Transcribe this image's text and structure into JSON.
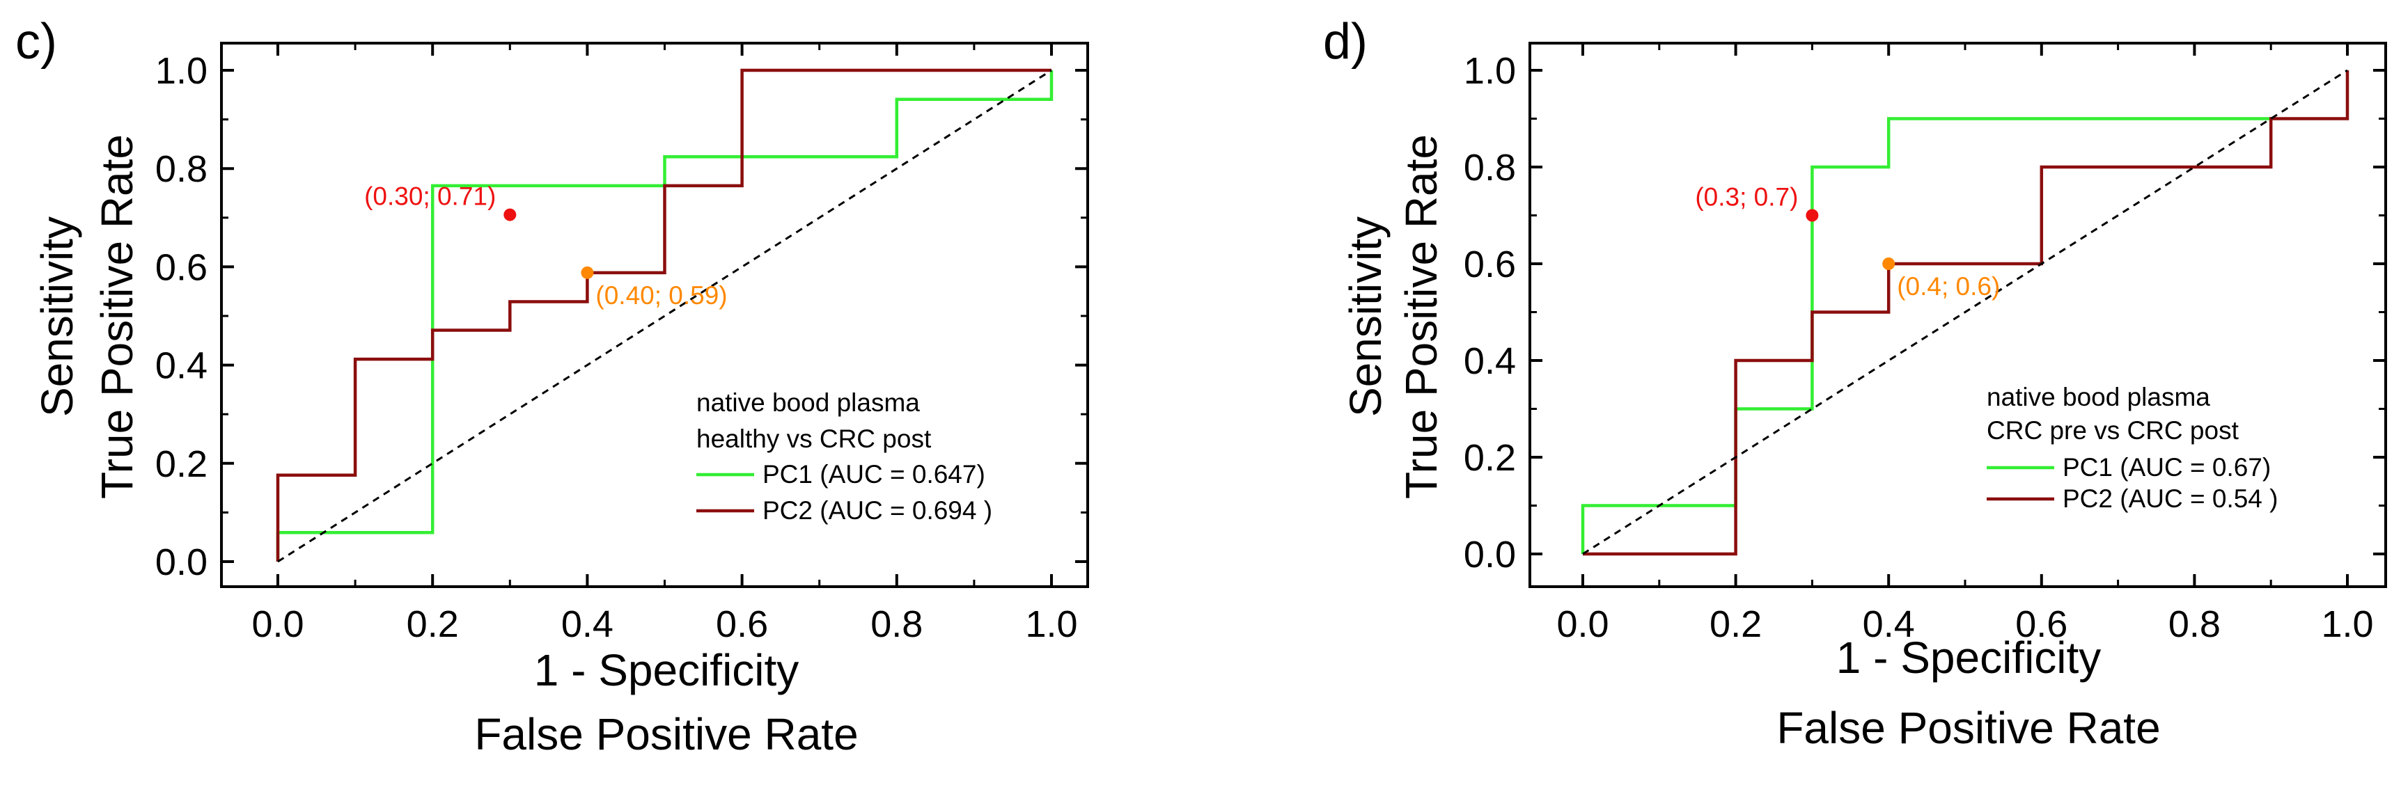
{
  "chart_data": [
    {
      "type": "line",
      "panel_label": "c)",
      "xlabel": [
        "1 - Specificity",
        "False Positive Rate"
      ],
      "ylabel": [
        "Sensitivity",
        "True Positive Rate"
      ],
      "xlim": [
        0.0,
        1.0
      ],
      "ylim": [
        0.0,
        1.0
      ],
      "xticks": [
        "0.0",
        "0.2",
        "0.4",
        "0.6",
        "0.8",
        "1.0"
      ],
      "yticks": [
        "0.0",
        "0.2",
        "0.4",
        "0.6",
        "0.8",
        "1.0"
      ],
      "grid": false,
      "legend_position": "lower-right",
      "legend_title": "native bood plasma",
      "legend_subtitle": "healthy vs CRC post",
      "legend_title_color": "#1f1fd6",
      "series": [
        {
          "name": "PC1 (AUC = 0.647)",
          "color": "#33ee33",
          "x": [
            0.0,
            0.0,
            0.2,
            0.2,
            0.3,
            0.3,
            0.5,
            0.5,
            0.8,
            0.8,
            1.0,
            1.0
          ],
          "y": [
            0.0,
            0.059,
            0.059,
            0.765,
            0.765,
            0.765,
            0.765,
            0.824,
            0.824,
            0.941,
            0.941,
            1.0
          ]
        },
        {
          "name": "PC2 (AUC = 0.694 )",
          "color": "#8b0e0e",
          "x": [
            0.0,
            0.0,
            0.1,
            0.1,
            0.2,
            0.2,
            0.3,
            0.3,
            0.4,
            0.4,
            0.5,
            0.5,
            0.6,
            0.6,
            1.0
          ],
          "y": [
            0.0,
            0.176,
            0.176,
            0.412,
            0.412,
            0.471,
            0.471,
            0.529,
            0.529,
            0.588,
            0.588,
            0.765,
            0.765,
            1.0,
            1.0
          ]
        },
        {
          "name": "",
          "type": "diagonal",
          "color": "#000000",
          "x": [
            0.0,
            1.0
          ],
          "y": [
            0.0,
            1.0
          ]
        }
      ],
      "annotations": [
        {
          "text": "(0.30; 0.71)",
          "x": 0.3,
          "y": 0.706,
          "color": "#ee1111",
          "label_side": "left"
        },
        {
          "text": "(0.40; 0.59)",
          "x": 0.4,
          "y": 0.588,
          "color": "#ff8800",
          "label_side": "below-right"
        }
      ]
    },
    {
      "type": "line",
      "panel_label": "d)",
      "xlabel": [
        "1 - Specificity",
        "False Positive Rate"
      ],
      "ylabel": [
        "Sensitivity",
        "True Positive Rate"
      ],
      "xlim": [
        0.0,
        1.0
      ],
      "ylim": [
        0.0,
        1.0
      ],
      "xticks": [
        "0.0",
        "0.2",
        "0.4",
        "0.6",
        "0.8",
        "1.0"
      ],
      "yticks": [
        "0.0",
        "0.2",
        "0.4",
        "0.6",
        "0.8",
        "1.0"
      ],
      "grid": false,
      "legend_position": "lower-right",
      "legend_title": "native bood plasma",
      "legend_subtitle": "CRC pre vs CRC post",
      "legend_title_color": "#1f1fd6",
      "series": [
        {
          "name": "PC1 (AUC = 0.67)",
          "color": "#33ee33",
          "x": [
            0.0,
            0.0,
            0.2,
            0.2,
            0.3,
            0.3,
            0.4,
            0.4,
            0.9,
            0.9
          ],
          "y": [
            0.0,
            0.1,
            0.1,
            0.3,
            0.3,
            0.8,
            0.8,
            0.9,
            0.9,
            0.9
          ]
        },
        {
          "name": "PC2 (AUC = 0.54 )",
          "color": "#8b0e0e",
          "x": [
            0.0,
            0.2,
            0.2,
            0.3,
            0.3,
            0.4,
            0.4,
            0.6,
            0.6,
            0.9,
            0.9,
            1.0,
            1.0
          ],
          "y": [
            0.0,
            0.0,
            0.4,
            0.4,
            0.5,
            0.5,
            0.6,
            0.6,
            0.8,
            0.8,
            0.9,
            0.9,
            1.0
          ]
        },
        {
          "name": "",
          "type": "diagonal",
          "color": "#000000",
          "x": [
            0.0,
            1.0
          ],
          "y": [
            0.0,
            1.0
          ]
        }
      ],
      "annotations": [
        {
          "text": "(0.3; 0.7)",
          "x": 0.3,
          "y": 0.7,
          "color": "#ee1111",
          "label_side": "left"
        },
        {
          "text": "(0.4; 0.6)",
          "x": 0.4,
          "y": 0.6,
          "color": "#ff8800",
          "label_side": "below-right"
        }
      ]
    }
  ]
}
